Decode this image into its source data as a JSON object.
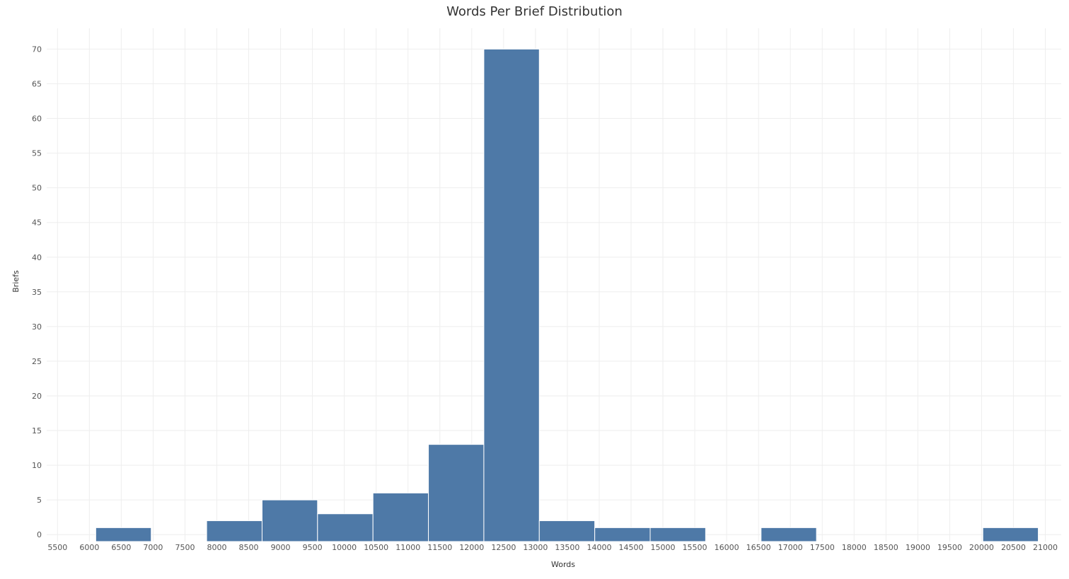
{
  "chart_data": {
    "type": "bar",
    "title": "Words Per Brief Distribution",
    "xlabel": "Words",
    "ylabel": "Briefs",
    "bin_width": 870,
    "bins": [
      {
        "start": 6100,
        "end": 6970,
        "value": 1
      },
      {
        "start": 6970,
        "end": 7840,
        "value": 0
      },
      {
        "start": 7840,
        "end": 8710,
        "value": 2
      },
      {
        "start": 8710,
        "end": 9580,
        "value": 5
      },
      {
        "start": 9580,
        "end": 10450,
        "value": 3
      },
      {
        "start": 10450,
        "end": 11320,
        "value": 6
      },
      {
        "start": 11320,
        "end": 12190,
        "value": 13
      },
      {
        "start": 12190,
        "end": 13060,
        "value": 70
      },
      {
        "start": 13060,
        "end": 13930,
        "value": 2
      },
      {
        "start": 13930,
        "end": 14800,
        "value": 1
      },
      {
        "start": 14800,
        "end": 15670,
        "value": 1
      },
      {
        "start": 15670,
        "end": 16540,
        "value": 0
      },
      {
        "start": 16540,
        "end": 17410,
        "value": 1
      },
      {
        "start": 17410,
        "end": 18280,
        "value": 0
      },
      {
        "start": 18280,
        "end": 19150,
        "value": 0
      },
      {
        "start": 19150,
        "end": 20020,
        "value": 0
      },
      {
        "start": 20020,
        "end": 20890,
        "value": 1
      }
    ],
    "x_ticks": [
      5500,
      6000,
      6500,
      7000,
      7500,
      8000,
      8500,
      9000,
      9500,
      10000,
      10500,
      11000,
      11500,
      12000,
      12500,
      13000,
      13500,
      14000,
      14500,
      15000,
      15500,
      16000,
      16500,
      17000,
      17500,
      18000,
      18500,
      19000,
      19500,
      20000,
      20500,
      21000
    ],
    "y_ticks": [
      0,
      5,
      10,
      15,
      20,
      25,
      30,
      35,
      40,
      45,
      50,
      55,
      60,
      65,
      70
    ],
    "xlim": [
      5330,
      21250
    ],
    "ylim": [
      -1,
      73
    ],
    "grid": true,
    "color": "#4e79a7"
  }
}
